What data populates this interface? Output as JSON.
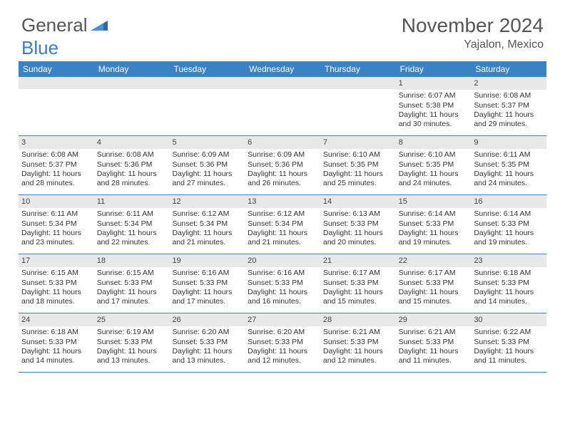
{
  "logo": {
    "text1": "General",
    "text2": "Blue"
  },
  "title": {
    "month": "November 2024",
    "location": "Yajalon, Mexico"
  },
  "colors": {
    "header_bg": "#3b82c4",
    "rule": "#3b82c4",
    "daynum_bg": "#e8e8e8",
    "text": "#333333",
    "title_text": "#555555"
  },
  "day_headers": [
    "Sunday",
    "Monday",
    "Tuesday",
    "Wednesday",
    "Thursday",
    "Friday",
    "Saturday"
  ],
  "weeks": [
    [
      null,
      null,
      null,
      null,
      null,
      {
        "n": "1",
        "sr": "6:07 AM",
        "ss": "5:38 PM",
        "dl": "11 hours and 30 minutes."
      },
      {
        "n": "2",
        "sr": "6:08 AM",
        "ss": "5:37 PM",
        "dl": "11 hours and 29 minutes."
      }
    ],
    [
      {
        "n": "3",
        "sr": "6:08 AM",
        "ss": "5:37 PM",
        "dl": "11 hours and 28 minutes."
      },
      {
        "n": "4",
        "sr": "6:08 AM",
        "ss": "5:36 PM",
        "dl": "11 hours and 28 minutes."
      },
      {
        "n": "5",
        "sr": "6:09 AM",
        "ss": "5:36 PM",
        "dl": "11 hours and 27 minutes."
      },
      {
        "n": "6",
        "sr": "6:09 AM",
        "ss": "5:36 PM",
        "dl": "11 hours and 26 minutes."
      },
      {
        "n": "7",
        "sr": "6:10 AM",
        "ss": "5:35 PM",
        "dl": "11 hours and 25 minutes."
      },
      {
        "n": "8",
        "sr": "6:10 AM",
        "ss": "5:35 PM",
        "dl": "11 hours and 24 minutes."
      },
      {
        "n": "9",
        "sr": "6:11 AM",
        "ss": "5:35 PM",
        "dl": "11 hours and 24 minutes."
      }
    ],
    [
      {
        "n": "10",
        "sr": "6:11 AM",
        "ss": "5:34 PM",
        "dl": "11 hours and 23 minutes."
      },
      {
        "n": "11",
        "sr": "6:11 AM",
        "ss": "5:34 PM",
        "dl": "11 hours and 22 minutes."
      },
      {
        "n": "12",
        "sr": "6:12 AM",
        "ss": "5:34 PM",
        "dl": "11 hours and 21 minutes."
      },
      {
        "n": "13",
        "sr": "6:12 AM",
        "ss": "5:34 PM",
        "dl": "11 hours and 21 minutes."
      },
      {
        "n": "14",
        "sr": "6:13 AM",
        "ss": "5:33 PM",
        "dl": "11 hours and 20 minutes."
      },
      {
        "n": "15",
        "sr": "6:14 AM",
        "ss": "5:33 PM",
        "dl": "11 hours and 19 minutes."
      },
      {
        "n": "16",
        "sr": "6:14 AM",
        "ss": "5:33 PM",
        "dl": "11 hours and 19 minutes."
      }
    ],
    [
      {
        "n": "17",
        "sr": "6:15 AM",
        "ss": "5:33 PM",
        "dl": "11 hours and 18 minutes."
      },
      {
        "n": "18",
        "sr": "6:15 AM",
        "ss": "5:33 PM",
        "dl": "11 hours and 17 minutes."
      },
      {
        "n": "19",
        "sr": "6:16 AM",
        "ss": "5:33 PM",
        "dl": "11 hours and 17 minutes."
      },
      {
        "n": "20",
        "sr": "6:16 AM",
        "ss": "5:33 PM",
        "dl": "11 hours and 16 minutes."
      },
      {
        "n": "21",
        "sr": "6:17 AM",
        "ss": "5:33 PM",
        "dl": "11 hours and 15 minutes."
      },
      {
        "n": "22",
        "sr": "6:17 AM",
        "ss": "5:33 PM",
        "dl": "11 hours and 15 minutes."
      },
      {
        "n": "23",
        "sr": "6:18 AM",
        "ss": "5:33 PM",
        "dl": "11 hours and 14 minutes."
      }
    ],
    [
      {
        "n": "24",
        "sr": "6:18 AM",
        "ss": "5:33 PM",
        "dl": "11 hours and 14 minutes."
      },
      {
        "n": "25",
        "sr": "6:19 AM",
        "ss": "5:33 PM",
        "dl": "11 hours and 13 minutes."
      },
      {
        "n": "26",
        "sr": "6:20 AM",
        "ss": "5:33 PM",
        "dl": "11 hours and 13 minutes."
      },
      {
        "n": "27",
        "sr": "6:20 AM",
        "ss": "5:33 PM",
        "dl": "11 hours and 12 minutes."
      },
      {
        "n": "28",
        "sr": "6:21 AM",
        "ss": "5:33 PM",
        "dl": "11 hours and 12 minutes."
      },
      {
        "n": "29",
        "sr": "6:21 AM",
        "ss": "5:33 PM",
        "dl": "11 hours and 11 minutes."
      },
      {
        "n": "30",
        "sr": "6:22 AM",
        "ss": "5:33 PM",
        "dl": "11 hours and 11 minutes."
      }
    ]
  ],
  "labels": {
    "sunrise": "Sunrise:",
    "sunset": "Sunset:",
    "daylight": "Daylight:"
  }
}
